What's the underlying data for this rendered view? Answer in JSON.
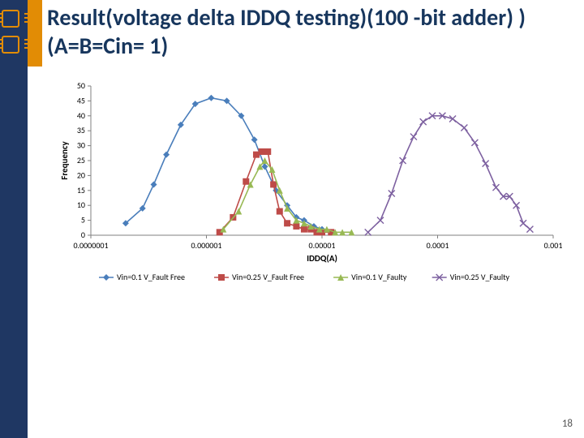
{
  "title": "Result(voltage delta IDDQ testing)(100 -bit adder) )(A=B=Cin= 1)",
  "page_number": "18",
  "chart": {
    "type": "line",
    "x_scale": "log",
    "x_axis_label": "IDDQ(A)",
    "y_axis_label": "Frequency",
    "x_ticks": [
      1e-07,
      1e-06,
      1e-05,
      0.0001,
      0.001
    ],
    "x_tick_labels": [
      "0.0000001",
      "0.000001",
      "0.00001",
      "0.0001",
      "0.001"
    ],
    "y_ticks": [
      0,
      5,
      10,
      15,
      20,
      25,
      30,
      35,
      40,
      45,
      50
    ],
    "ylim": [
      0,
      50
    ],
    "background_color": "#ffffff",
    "axis_color": "#808080",
    "marker_size": 4,
    "line_width": 1.6,
    "series": [
      {
        "name": "Vin=0.1 V_Fault Free",
        "color": "#4a7ebb",
        "marker": "diamond",
        "points": [
          [
            2e-07,
            4
          ],
          [
            2.8e-07,
            9
          ],
          [
            3.5e-07,
            17
          ],
          [
            4.5e-07,
            27
          ],
          [
            6e-07,
            37
          ],
          [
            8e-07,
            44
          ],
          [
            1.1e-06,
            46
          ],
          [
            1.5e-06,
            45
          ],
          [
            2e-06,
            40
          ],
          [
            2.6e-06,
            32
          ],
          [
            3.2e-06,
            23
          ],
          [
            4e-06,
            15
          ],
          [
            5e-06,
            10
          ],
          [
            6e-06,
            6
          ],
          [
            7e-06,
            5
          ],
          [
            8.5e-06,
            3
          ],
          [
            1e-05,
            2
          ],
          [
            1.2e-05,
            1
          ]
        ]
      },
      {
        "name": "Vin=0.25 V_Fault Free",
        "color": "#be4b48",
        "marker": "square",
        "points": [
          [
            1.3e-06,
            1
          ],
          [
            1.7e-06,
            6
          ],
          [
            2.2e-06,
            18
          ],
          [
            2.7e-06,
            27
          ],
          [
            3e-06,
            28
          ],
          [
            3.4e-06,
            28
          ],
          [
            3.8e-06,
            17
          ],
          [
            4.3e-06,
            8
          ],
          [
            5e-06,
            4
          ],
          [
            6e-06,
            3
          ],
          [
            7e-06,
            2
          ],
          [
            8e-06,
            2
          ],
          [
            9e-06,
            1
          ],
          [
            1e-05,
            1
          ],
          [
            1.2e-05,
            1
          ]
        ]
      },
      {
        "name": "Vin=0.1 V_Faulty",
        "color": "#98b954",
        "marker": "triangle",
        "points": [
          [
            1.4e-06,
            2
          ],
          [
            1.9e-06,
            8
          ],
          [
            2.4e-06,
            17
          ],
          [
            2.9e-06,
            23
          ],
          [
            3.2e-06,
            25
          ],
          [
            3.7e-06,
            22
          ],
          [
            4.3e-06,
            15
          ],
          [
            5e-06,
            9
          ],
          [
            6e-06,
            5
          ],
          [
            7e-06,
            4
          ],
          [
            8e-06,
            3
          ],
          [
            9.5e-06,
            2
          ],
          [
            1.1e-05,
            2
          ],
          [
            1.3e-05,
            1
          ],
          [
            1.5e-05,
            1
          ],
          [
            1.8e-05,
            1
          ]
        ]
      },
      {
        "name": "Vin=0.25 V_Faulty",
        "color": "#7d60a0",
        "marker": "cross",
        "points": [
          [
            2.5e-05,
            1
          ],
          [
            3.2e-05,
            5
          ],
          [
            4e-05,
            14
          ],
          [
            5e-05,
            25
          ],
          [
            6.2e-05,
            33
          ],
          [
            7.5e-05,
            38
          ],
          [
            9e-05,
            40
          ],
          [
            0.00011,
            40
          ],
          [
            0.000135,
            39
          ],
          [
            0.00017,
            36
          ],
          [
            0.00021,
            31
          ],
          [
            0.00026,
            24
          ],
          [
            0.00032,
            16
          ],
          [
            0.00037,
            13
          ],
          [
            0.00042,
            13
          ],
          [
            0.00048,
            10
          ],
          [
            0.00055,
            4
          ],
          [
            0.00063,
            2
          ]
        ]
      }
    ],
    "axis_label_fontsize": 11,
    "tick_fontsize": 10
  }
}
